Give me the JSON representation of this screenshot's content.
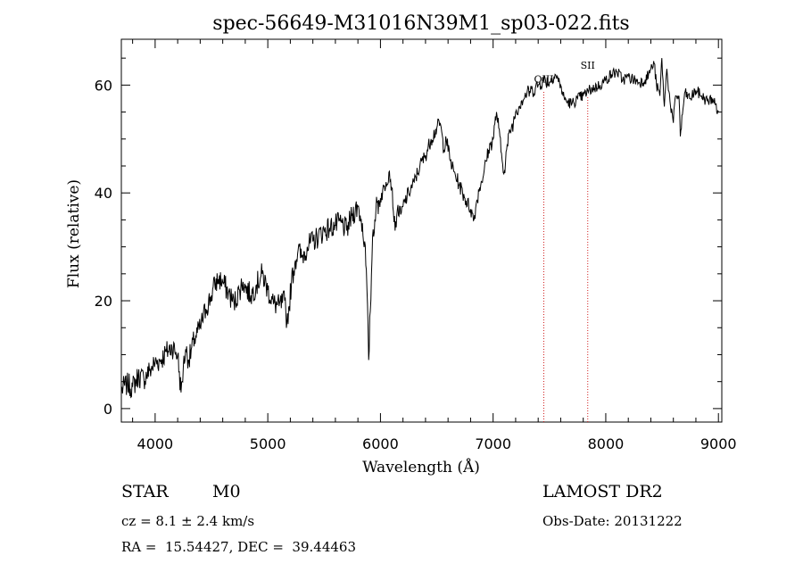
{
  "chart_data": {
    "type": "line",
    "title": "spec-56649-M31016N39M1_sp03-022.fits",
    "xlabel": "Wavelength (Å)",
    "ylabel": "Flux (relative)",
    "xlim": [
      3700,
      9030
    ],
    "ylim": [
      -2.5,
      68.5
    ],
    "xticks": [
      4000,
      5000,
      6000,
      7000,
      8000,
      9000
    ],
    "yticks": [
      0,
      20,
      40,
      60
    ],
    "grid": false,
    "series": [
      {
        "x": [
          3700,
          3750,
          3800,
          3850,
          3900,
          3950,
          4000,
          4050,
          4100,
          4150,
          4200,
          4230,
          4250,
          4270,
          4300,
          4350,
          4400,
          4450,
          4500,
          4530,
          4560,
          4600,
          4650,
          4700,
          4750,
          4780,
          4800,
          4850,
          4900,
          4950,
          5000,
          5050,
          5100,
          5150,
          5170,
          5190,
          5210,
          5240,
          5270,
          5300,
          5350,
          5400,
          5450,
          5500,
          5550,
          5600,
          5650,
          5700,
          5750,
          5800,
          5830,
          5860,
          5880,
          5895,
          5910,
          5930,
          5960,
          6000,
          6050,
          6080,
          6100,
          6130,
          6150,
          6180,
          6200,
          6250,
          6300,
          6350,
          6400,
          6450,
          6500,
          6530,
          6563,
          6580,
          6620,
          6650,
          6700,
          6750,
          6800,
          6830,
          6850,
          6880,
          6920,
          6960,
          7000,
          7030,
          7050,
          7080,
          7100,
          7120,
          7150,
          7180,
          7200,
          7250,
          7300,
          7350,
          7400,
          7450,
          7500,
          7550,
          7600,
          7620,
          7650,
          7700,
          7750,
          7800,
          7850,
          7900,
          7950,
          8000,
          8050,
          8100,
          8150,
          8200,
          8250,
          8300,
          8350,
          8380,
          8400,
          8430,
          8450,
          8480,
          8498,
          8520,
          8542,
          8570,
          8600,
          8620,
          8650,
          8662,
          8700,
          8750,
          8800,
          8850,
          8900,
          8950,
          9000
        ],
        "y": [
          3.5,
          4.5,
          4,
          6,
          5.5,
          7,
          8.5,
          9,
          10.5,
          11.5,
          10,
          3,
          7.5,
          11,
          9,
          13,
          15,
          18.5,
          21,
          23,
          24,
          23.5,
          21.5,
          19.5,
          22,
          23.5,
          22.5,
          21,
          23,
          25,
          22,
          19.5,
          19,
          20,
          16,
          19,
          23.5,
          27,
          29.5,
          28,
          30,
          31,
          32,
          33,
          33.5,
          34,
          34.5,
          33,
          36,
          37.5,
          35,
          31,
          22,
          9,
          18,
          32,
          37,
          39,
          42,
          44,
          41,
          33,
          37,
          36,
          37.5,
          40,
          42,
          45,
          47,
          50,
          52,
          53,
          48,
          50.5,
          46,
          44,
          41.5,
          39,
          37,
          35,
          38,
          41,
          44,
          48,
          50,
          55,
          52,
          46,
          44,
          48,
          51.5,
          53,
          55,
          57,
          58.5,
          59,
          60,
          61,
          60.5,
          62,
          60,
          58,
          57,
          56.5,
          57.5,
          58,
          59,
          59.5,
          60,
          61,
          62,
          62.5,
          61,
          61.5,
          61,
          60.5,
          61,
          62,
          63,
          64,
          60,
          58,
          65,
          56,
          63,
          57,
          53,
          58,
          58,
          50.5,
          58.5,
          57.5,
          59,
          58,
          57,
          57.5,
          55
        ]
      }
    ],
    "annotations": [
      {
        "label": "OIII",
        "x": 7450
      },
      {
        "label": "SII",
        "x": 7840
      }
    ]
  },
  "info": {
    "object_class": "STAR",
    "subclass": "M0",
    "survey": "LAMOST DR2",
    "cz": "cz = 8.1 ± 2.4 km/s",
    "obs_date": "Obs-Date: 20131222",
    "coords": "RA =  15.54427, DEC =  39.44463"
  }
}
